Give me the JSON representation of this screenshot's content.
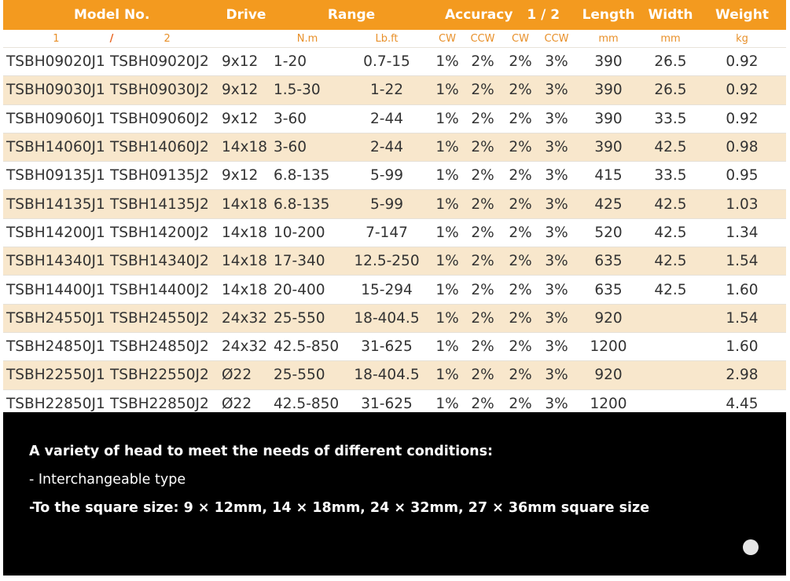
{
  "headers": {
    "model": "Model No.",
    "drive": "Drive",
    "range": "Range",
    "accuracy": "Accuracy",
    "accuracy_fraction": "1 / 2",
    "length": "Length",
    "width": "Width",
    "weight": "Weight"
  },
  "subheaders": {
    "model1": "1",
    "model_sep": "/",
    "model2": "2",
    "nm": "N.m",
    "lbft": "Lb.ft",
    "cw1": "CW",
    "ccw1": "CCW",
    "cw2": "CW",
    "ccw2": "CCW",
    "length_unit": "mm",
    "width_unit": "mm",
    "weight_unit": "kg"
  },
  "rows": [
    {
      "m1": "TSBH09020J1",
      "m2": "TSBH09020J2",
      "drive": "9x12",
      "nm": "1-20",
      "lbft": "0.7-15",
      "cw1": "1%",
      "ccw1": "2%",
      "cw2": "2%",
      "ccw2": "3%",
      "length": "390",
      "width": "26.5",
      "weight": "0.92"
    },
    {
      "m1": "TSBH09030J1",
      "m2": "TSBH09030J2",
      "drive": "9x12",
      "nm": "1.5-30",
      "lbft": "1-22",
      "cw1": "1%",
      "ccw1": "2%",
      "cw2": "2%",
      "ccw2": "3%",
      "length": "390",
      "width": "26.5",
      "weight": "0.92"
    },
    {
      "m1": "TSBH09060J1",
      "m2": "TSBH09060J2",
      "drive": "9x12",
      "nm": "3-60",
      "lbft": "2-44",
      "cw1": "1%",
      "ccw1": "2%",
      "cw2": "2%",
      "ccw2": "3%",
      "length": "390",
      "width": "33.5",
      "weight": "0.92"
    },
    {
      "m1": "TSBH14060J1",
      "m2": "TSBH14060J2",
      "drive": "14x18",
      "nm": "3-60",
      "lbft": "2-44",
      "cw1": "1%",
      "ccw1": "2%",
      "cw2": "2%",
      "ccw2": "3%",
      "length": "390",
      "width": "42.5",
      "weight": "0.98"
    },
    {
      "m1": "TSBH09135J1",
      "m2": "TSBH09135J2",
      "drive": "9x12",
      "nm": "6.8-135",
      "lbft": "5-99",
      "cw1": "1%",
      "ccw1": "2%",
      "cw2": "2%",
      "ccw2": "3%",
      "length": "415",
      "width": "33.5",
      "weight": "0.95"
    },
    {
      "m1": "TSBH14135J1",
      "m2": "TSBH14135J2",
      "drive": "14x18",
      "nm": "6.8-135",
      "lbft": "5-99",
      "cw1": "1%",
      "ccw1": "2%",
      "cw2": "2%",
      "ccw2": "3%",
      "length": "425",
      "width": "42.5",
      "weight": "1.03"
    },
    {
      "m1": "TSBH14200J1",
      "m2": "TSBH14200J2",
      "drive": "14x18",
      "nm": "10-200",
      "lbft": "7-147",
      "cw1": "1%",
      "ccw1": "2%",
      "cw2": "2%",
      "ccw2": "3%",
      "length": "520",
      "width": "42.5",
      "weight": "1.34"
    },
    {
      "m1": "TSBH14340J1",
      "m2": "TSBH14340J2",
      "drive": "14x18",
      "nm": "17-340",
      "lbft": "12.5-250",
      "cw1": "1%",
      "ccw1": "2%",
      "cw2": "2%",
      "ccw2": "3%",
      "length": "635",
      "width": "42.5",
      "weight": "1.54"
    },
    {
      "m1": "TSBH14400J1",
      "m2": "TSBH14400J2",
      "drive": "14x18",
      "nm": "20-400",
      "lbft": "15-294",
      "cw1": "1%",
      "ccw1": "2%",
      "cw2": "2%",
      "ccw2": "3%",
      "length": "635",
      "width": "42.5",
      "weight": "1.60"
    },
    {
      "m1": "TSBH24550J1",
      "m2": "TSBH24550J2",
      "drive": "24x32",
      "nm": "25-550",
      "lbft": "18-404.5",
      "cw1": "1%",
      "ccw1": "2%",
      "cw2": "2%",
      "ccw2": "3%",
      "length": "920",
      "width": "",
      "weight": "1.54"
    },
    {
      "m1": "TSBH24850J1",
      "m2": "TSBH24850J2",
      "drive": "24x32",
      "nm": "42.5-850",
      "lbft": "31-625",
      "cw1": "1%",
      "ccw1": "2%",
      "cw2": "2%",
      "ccw2": "3%",
      "length": "1200",
      "width": "",
      "weight": "1.60"
    },
    {
      "m1": "TSBH22550J1",
      "m2": "TSBH22550J2",
      "drive": "Ø22",
      "nm": "25-550",
      "lbft": "18-404.5",
      "cw1": "1%",
      "ccw1": "2%",
      "cw2": "2%",
      "ccw2": "3%",
      "length": "920",
      "width": "",
      "weight": "2.98"
    },
    {
      "m1": "TSBH22850J1",
      "m2": "TSBH22850J2",
      "drive": "Ø22",
      "nm": "42.5-850",
      "lbft": "31-625",
      "cw1": "1%",
      "ccw1": "2%",
      "cw2": "2%",
      "ccw2": "3%",
      "length": "1200",
      "width": "",
      "weight": "4.45"
    }
  ],
  "info": {
    "line1": "A variety of head to meet the needs of different conditions:",
    "line2": "- Interchangeable type",
    "line3": "-To the square size: 9 × 12mm, 14 × 18mm, 24 × 32mm, 27 × 36mm square size"
  },
  "colors": {
    "header_orange": "#f39a1f",
    "row_stripe": "#f8e7cc",
    "unit_orange": "#e8902a"
  }
}
